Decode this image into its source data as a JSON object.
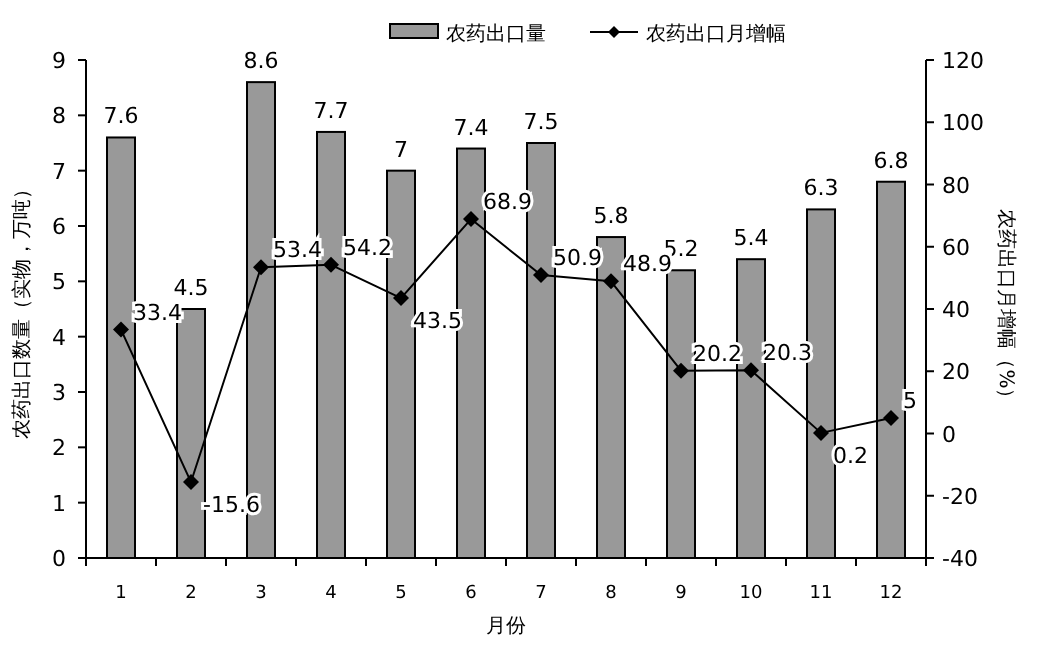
{
  "chart_data": {
    "type": "bar",
    "categories": [
      "1",
      "2",
      "3",
      "4",
      "5",
      "6",
      "7",
      "8",
      "9",
      "10",
      "11",
      "12"
    ],
    "xlabel": "月份",
    "ylabel": "农药出口数量（实物，万吨）",
    "y2label": "农药出口月增幅（%）",
    "ylim": [
      0,
      9
    ],
    "yticks": [
      0,
      1,
      2,
      3,
      4,
      5,
      6,
      7,
      8,
      9
    ],
    "y2lim": [
      -40,
      120
    ],
    "y2ticks": [
      -40,
      -20,
      0,
      20,
      40,
      60,
      80,
      100,
      120
    ],
    "legend": "top",
    "data_labels": true,
    "grid": false,
    "series": [
      {
        "name": "农药出口量",
        "type": "bar",
        "color": "#999999",
        "values": [
          7.6,
          4.5,
          8.6,
          7.7,
          7,
          7.4,
          7.5,
          5.8,
          5.2,
          5.4,
          6.3,
          6.8
        ]
      },
      {
        "name": "农药出口月增幅",
        "type": "line",
        "axis": "y2",
        "color": "#000000",
        "marker": "diamond",
        "values": [
          33.4,
          -15.6,
          53.4,
          54.2,
          43.5,
          68.9,
          50.9,
          48.9,
          20.2,
          20.3,
          0.2,
          5
        ]
      }
    ]
  }
}
